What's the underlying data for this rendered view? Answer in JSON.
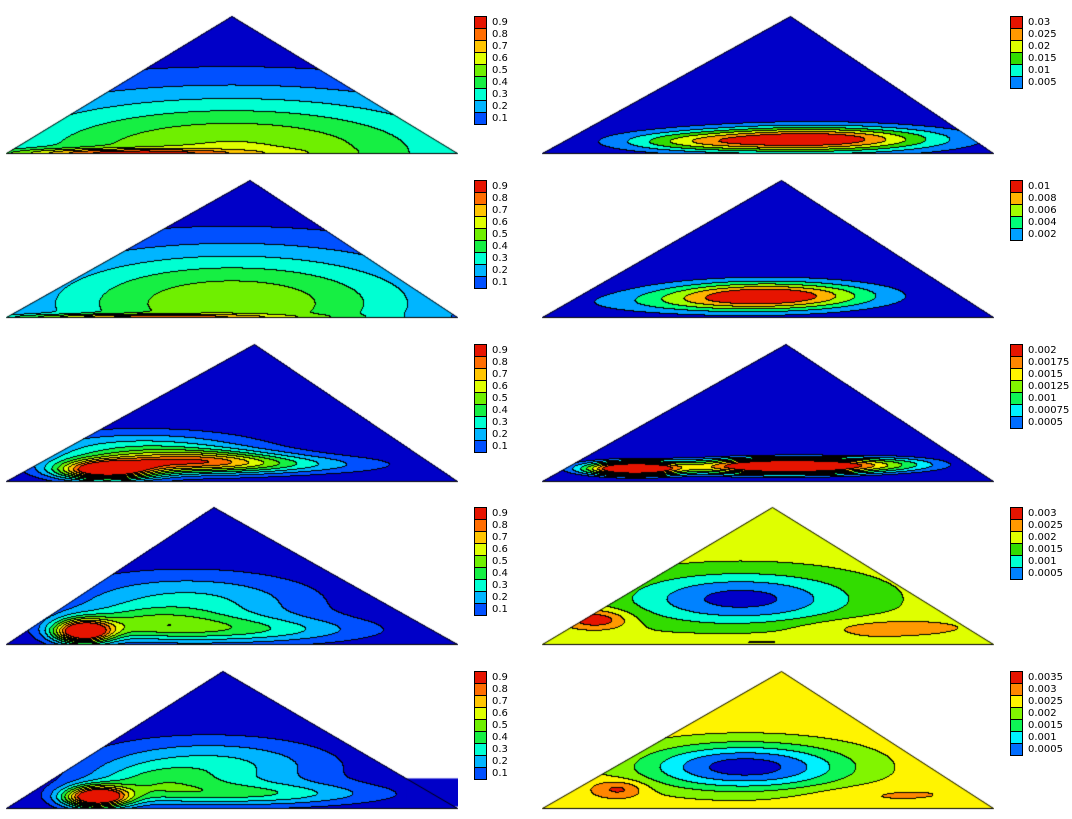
{
  "page": {
    "background": "#ffffff"
  },
  "palette": [
    "#0000C8",
    "#0046FF",
    "#00A0FF",
    "#00FFFF",
    "#00FF78",
    "#32DC00",
    "#A0FF00",
    "#FFFF00",
    "#FFB400",
    "#FF6400",
    "#E61400"
  ],
  "chart_data": [
    {
      "id": "contour-row1-left",
      "type": "heatmap",
      "subtype": "filled-contour",
      "domain_shape": "triangle",
      "title": "",
      "apex_x": 0.5,
      "levels": [
        0.1,
        0.2,
        0.3,
        0.4,
        0.5,
        0.6,
        0.7,
        0.8,
        0.9
      ],
      "legend_labels": [
        "0.9",
        "0.8",
        "0.7",
        "0.6",
        "0.5",
        "0.4",
        "0.3",
        "0.2",
        "0.1"
      ],
      "legend_position": "right",
      "field": {
        "base": 0,
        "peaks": [
          {
            "a": 0.62,
            "x": 0.5,
            "y": 0.0,
            "sx": 0.42,
            "sy": 0.33
          },
          {
            "a": 0.45,
            "x": 0.25,
            "y": 0.0,
            "sx": 0.18,
            "sy": 0.022
          }
        ]
      }
    },
    {
      "id": "contour-row1-right",
      "type": "heatmap",
      "subtype": "filled-contour",
      "domain_shape": "triangle",
      "title": "",
      "apex_x": 0.55,
      "levels": [
        0.005,
        0.01,
        0.015,
        0.02,
        0.025,
        0.03
      ],
      "legend_labels": [
        "0.03",
        "0.025",
        "0.02",
        "0.015",
        "0.01",
        "0.005"
      ],
      "legend_position": "right",
      "field": {
        "base": 0,
        "peaks": [
          {
            "a": 0.036,
            "x": 0.6,
            "y": 0.1,
            "sx": 0.19,
            "sy": 0.065
          },
          {
            "a": 0.012,
            "x": 0.33,
            "y": 0.08,
            "sx": 0.13,
            "sy": 0.05
          }
        ]
      }
    },
    {
      "id": "contour-row2-left",
      "type": "heatmap",
      "subtype": "filled-contour",
      "domain_shape": "triangle",
      "title": "",
      "apex_x": 0.54,
      "levels": [
        0.1,
        0.2,
        0.3,
        0.4,
        0.5,
        0.6,
        0.7,
        0.8,
        0.9
      ],
      "legend_labels": [
        "0.9",
        "0.8",
        "0.7",
        "0.6",
        "0.5",
        "0.4",
        "0.3",
        "0.2",
        "0.1"
      ],
      "legend_position": "right",
      "field": {
        "base": 0,
        "peaks": [
          {
            "a": 0.58,
            "x": 0.5,
            "y": 0.1,
            "sx": 0.34,
            "sy": 0.3
          },
          {
            "a": 0.4,
            "x": 0.28,
            "y": 0.0,
            "sx": 0.22,
            "sy": 0.015
          }
        ]
      }
    },
    {
      "id": "contour-row2-right",
      "type": "heatmap",
      "subtype": "filled-contour",
      "domain_shape": "triangle",
      "title": "",
      "apex_x": 0.53,
      "levels": [
        0.002,
        0.004,
        0.006,
        0.008,
        0.01
      ],
      "legend_labels": [
        "0.01",
        "0.008",
        "0.006",
        "0.004",
        "0.002"
      ],
      "legend_position": "right",
      "field": {
        "base": 0,
        "peaks": [
          {
            "a": 0.0115,
            "x": 0.5,
            "y": 0.16,
            "sx": 0.16,
            "sy": 0.07
          },
          {
            "a": 0.003,
            "x": 0.35,
            "y": 0.1,
            "sx": 0.2,
            "sy": 0.06
          }
        ]
      }
    },
    {
      "id": "contour-row3-left",
      "type": "heatmap",
      "subtype": "filled-contour",
      "domain_shape": "triangle",
      "title": "",
      "apex_x": 0.55,
      "levels": [
        0.1,
        0.2,
        0.3,
        0.4,
        0.5,
        0.6,
        0.7,
        0.8,
        0.9
      ],
      "legend_labels": [
        "0.9",
        "0.8",
        "0.7",
        "0.6",
        "0.5",
        "0.4",
        "0.3",
        "0.2",
        "0.1"
      ],
      "legend_position": "right",
      "field": {
        "base": 0,
        "peaks": [
          {
            "a": 1.02,
            "x": 0.22,
            "y": 0.08,
            "sx": 0.075,
            "sy": 0.05
          },
          {
            "a": 0.55,
            "x": 0.42,
            "y": 0.14,
            "sx": 0.13,
            "sy": 0.055
          },
          {
            "a": 0.38,
            "x": 0.3,
            "y": 0.22,
            "sx": 0.18,
            "sy": 0.1
          },
          {
            "a": 0.25,
            "x": 0.6,
            "y": 0.12,
            "sx": 0.18,
            "sy": 0.05
          }
        ]
      }
    },
    {
      "id": "contour-row3-right",
      "type": "heatmap",
      "subtype": "filled-contour",
      "domain_shape": "triangle",
      "title": "",
      "apex_x": 0.54,
      "levels": [
        0.0005,
        0.00075,
        0.001,
        0.00125,
        0.0015,
        0.00175,
        0.002
      ],
      "legend_labels": [
        "0.002",
        "0.00175",
        "0.0015",
        "0.00125",
        "0.001",
        "0.00075",
        "0.0005"
      ],
      "legend_position": "right",
      "field": {
        "base": 0,
        "peaks": [
          {
            "a": 0.0024,
            "x": 0.2,
            "y": 0.09,
            "sx": 0.07,
            "sy": 0.035
          },
          {
            "a": 0.0024,
            "x": 0.55,
            "y": 0.11,
            "sx": 0.13,
            "sy": 0.04
          },
          {
            "a": 0.0007,
            "x": 0.42,
            "y": 0.1,
            "sx": 0.3,
            "sy": 0.055
          },
          {
            "a": 0.0006,
            "x": 0.78,
            "y": 0.13,
            "sx": 0.1,
            "sy": 0.045
          }
        ]
      }
    },
    {
      "id": "contour-row4-left",
      "type": "heatmap",
      "subtype": "filled-contour",
      "domain_shape": "triangle",
      "title": "",
      "apex_x": 0.46,
      "levels": [
        0.1,
        0.2,
        0.3,
        0.4,
        0.5,
        0.6,
        0.7,
        0.8,
        0.9
      ],
      "legend_labels": [
        "0.9",
        "0.8",
        "0.7",
        "0.6",
        "0.5",
        "0.4",
        "0.3",
        "0.2",
        "0.1"
      ],
      "legend_position": "right",
      "field": {
        "base": 0,
        "peaks": [
          {
            "a": 1.05,
            "x": 0.17,
            "y": 0.09,
            "sx": 0.045,
            "sy": 0.06
          },
          {
            "a": 0.33,
            "x": 0.4,
            "y": 0.3,
            "sx": 0.2,
            "sy": 0.16
          },
          {
            "a": 0.3,
            "x": 0.52,
            "y": 0.1,
            "sx": 0.2,
            "sy": 0.07
          },
          {
            "a": 0.25,
            "x": 0.3,
            "y": 0.15,
            "sx": 0.12,
            "sy": 0.08
          }
        ]
      }
    },
    {
      "id": "contour-row4-right",
      "type": "heatmap",
      "subtype": "filled-contour",
      "domain_shape": "triangle",
      "title": "",
      "apex_x": 0.51,
      "levels": [
        0.0005,
        0.001,
        0.0015,
        0.002,
        0.0025,
        0.003
      ],
      "legend_labels": [
        "0.003",
        "0.0025",
        "0.002",
        "0.0015",
        "0.001",
        "0.0005"
      ],
      "legend_position": "right",
      "field": {
        "base": 0.0022,
        "peaks": [
          {
            "a": -0.0019,
            "x": 0.44,
            "y": 0.33,
            "sx": 0.17,
            "sy": 0.13
          },
          {
            "a": 0.0013,
            "x": 0.12,
            "y": 0.18,
            "sx": 0.05,
            "sy": 0.05
          },
          {
            "a": 0.0006,
            "x": 0.76,
            "y": 0.12,
            "sx": 0.14,
            "sy": 0.05
          },
          {
            "a": 0.0004,
            "x": 0.45,
            "y": 0.02,
            "sx": 0.22,
            "sy": 0.03
          }
        ]
      }
    },
    {
      "id": "contour-row5-left",
      "type": "heatmap",
      "subtype": "filled-contour",
      "domain_shape": "triangle",
      "title": "",
      "apex_x": 0.48,
      "levels": [
        0.1,
        0.2,
        0.3,
        0.4,
        0.5,
        0.6,
        0.7,
        0.8,
        0.9
      ],
      "legend_labels": [
        "0.9",
        "0.8",
        "0.7",
        "0.6",
        "0.5",
        "0.4",
        "0.3",
        "0.2",
        "0.1"
      ],
      "legend_position": "right",
      "overlay_rect": {
        "x": 0.885,
        "y": 0.78,
        "w": 0.16,
        "h": 0.19,
        "color": "#0000C8"
      },
      "field": {
        "base": 0,
        "peaks": [
          {
            "a": 1.1,
            "x": 0.2,
            "y": 0.08,
            "sx": 0.05,
            "sy": 0.055
          },
          {
            "a": 0.34,
            "x": 0.45,
            "y": 0.3,
            "sx": 0.19,
            "sy": 0.15
          },
          {
            "a": 0.3,
            "x": 0.55,
            "y": 0.1,
            "sx": 0.2,
            "sy": 0.06
          },
          {
            "a": 0.22,
            "x": 0.32,
            "y": 0.18,
            "sx": 0.1,
            "sy": 0.09
          }
        ]
      }
    },
    {
      "id": "contour-row5-right",
      "type": "heatmap",
      "subtype": "filled-contour",
      "domain_shape": "triangle",
      "title": "",
      "apex_x": 0.53,
      "levels": [
        0.0005,
        0.001,
        0.0015,
        0.002,
        0.0025,
        0.003,
        0.0035
      ],
      "legend_labels": [
        "0.0035",
        "0.003",
        "0.0025",
        "0.002",
        "0.0015",
        "0.001",
        "0.0005"
      ],
      "legend_position": "right",
      "field": {
        "base": 0.0028,
        "peaks": [
          {
            "a": -0.0026,
            "x": 0.45,
            "y": 0.3,
            "sx": 0.16,
            "sy": 0.12
          },
          {
            "a": 0.001,
            "x": 0.17,
            "y": 0.14,
            "sx": 0.04,
            "sy": 0.045
          },
          {
            "a": 0.0003,
            "x": 0.75,
            "y": 0.1,
            "sx": 0.15,
            "sy": 0.05
          }
        ]
      }
    }
  ]
}
